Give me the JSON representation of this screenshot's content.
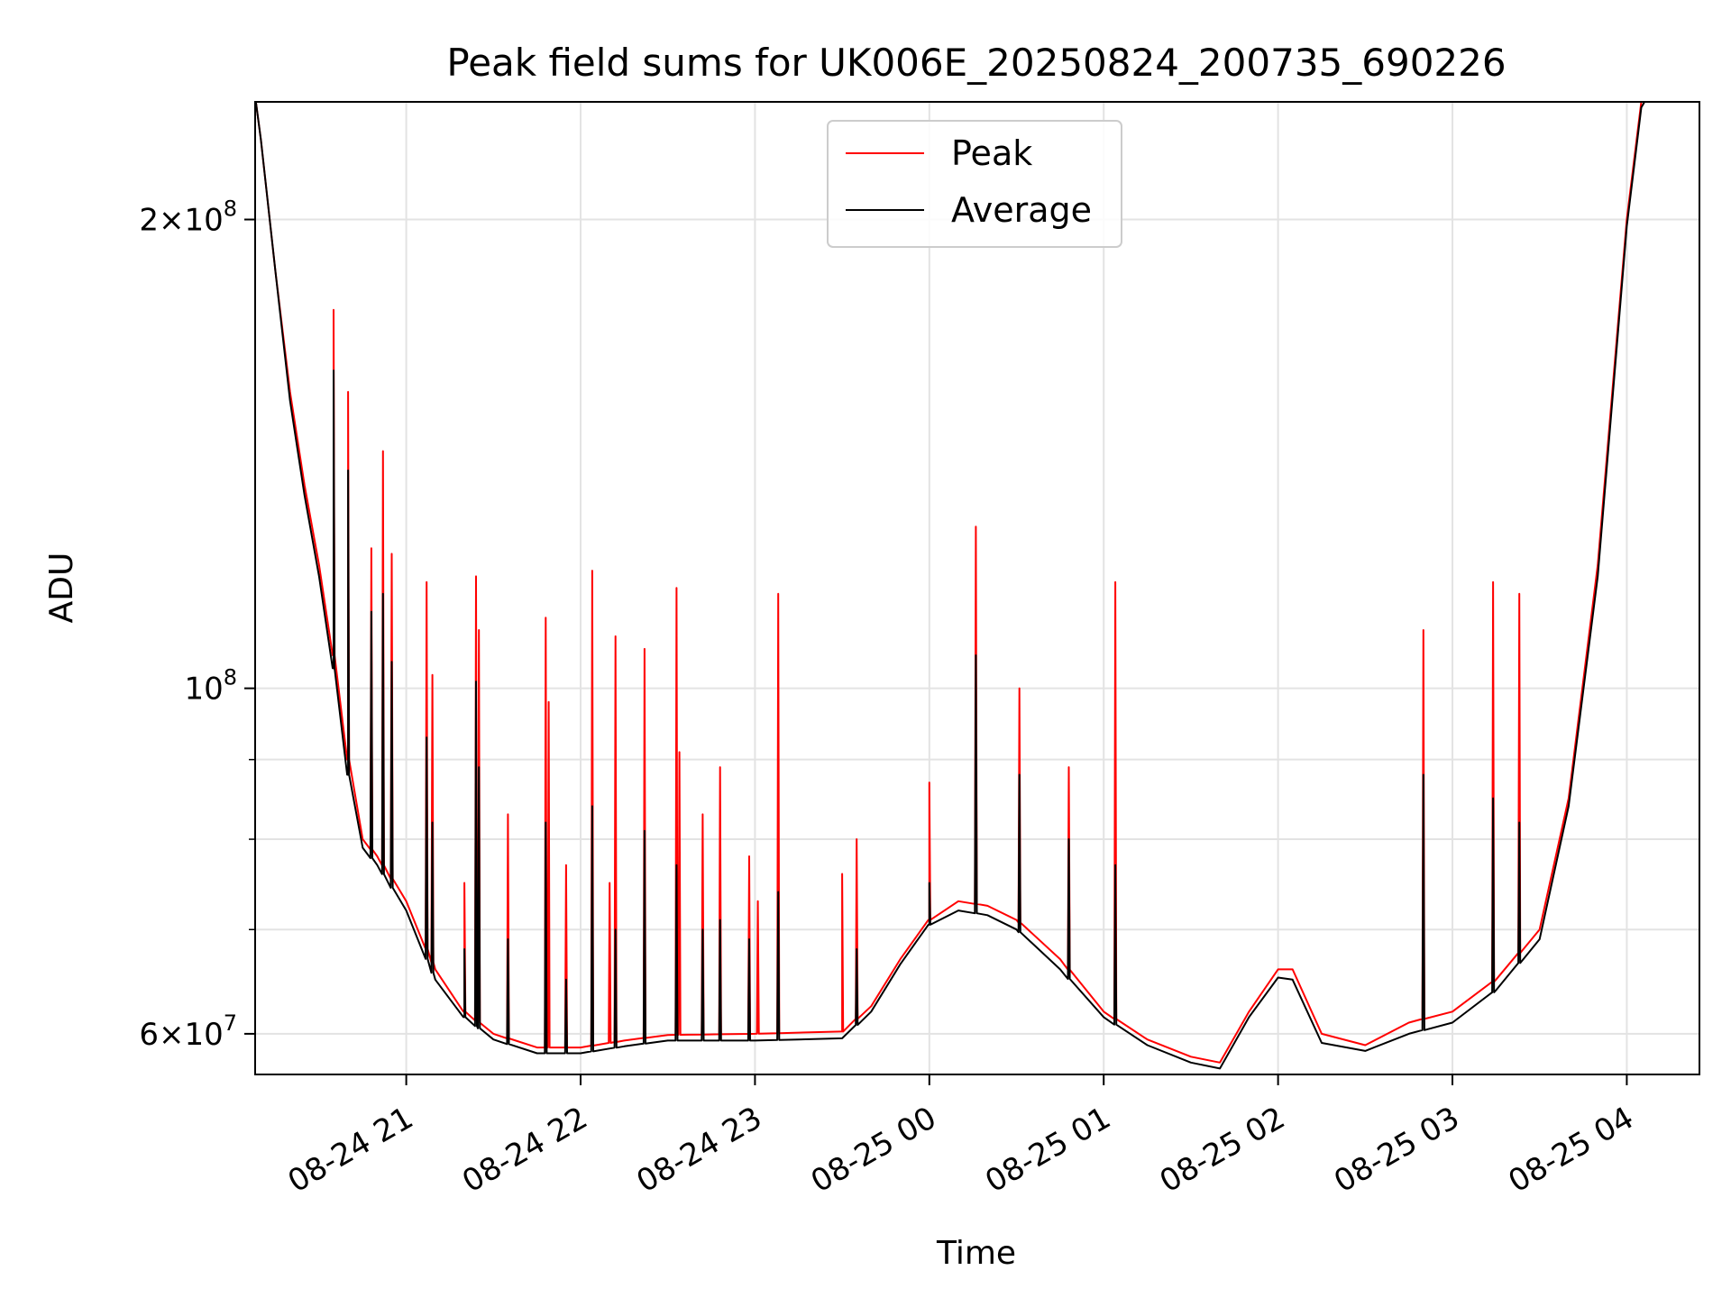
{
  "chart_data": {
    "type": "line",
    "title": "Peak field sums for UK006E_20250824_200735_690226",
    "xlabel": "Time",
    "ylabel": "ADU",
    "yscale": "log",
    "ylim": [
      56500000,
      238000000
    ],
    "xlim": [
      "2025-08-24 20:08",
      "2025-08-25 04:25"
    ],
    "grid": true,
    "legend_position": "top-center",
    "x_ticks": [
      {
        "value": "2025-08-24 21:00",
        "label": "08-24 21"
      },
      {
        "value": "2025-08-24 22:00",
        "label": "08-24 22"
      },
      {
        "value": "2025-08-24 23:00",
        "label": "08-24 23"
      },
      {
        "value": "2025-08-25 00:00",
        "label": "08-25 00"
      },
      {
        "value": "2025-08-25 01:00",
        "label": "08-25 01"
      },
      {
        "value": "2025-08-25 02:00",
        "label": "08-25 02"
      },
      {
        "value": "2025-08-25 03:00",
        "label": "08-25 03"
      },
      {
        "value": "2025-08-25 04:00",
        "label": "08-25 04"
      }
    ],
    "y_ticks": [
      {
        "value": 200000000,
        "mantissa": "2",
        "exponent": "8",
        "times": "×",
        "base": "10"
      },
      {
        "value": 100000000,
        "mantissa": "",
        "exponent": "8",
        "times": "",
        "base": "10"
      },
      {
        "value": 60000000,
        "mantissa": "6",
        "exponent": "7",
        "times": "×",
        "base": "10"
      }
    ],
    "y_minor_ticks": [
      70000000,
      80000000,
      90000000
    ],
    "series": [
      {
        "name": "Peak",
        "color": "#ff0000",
        "baseline": [
          [
            "2025-08-24 20:08",
            240000000
          ],
          [
            "2025-08-24 20:10",
            225000000
          ],
          [
            "2025-08-24 20:15",
            185000000
          ],
          [
            "2025-08-24 20:20",
            155000000
          ],
          [
            "2025-08-24 20:25",
            135000000
          ],
          [
            "2025-08-24 20:30",
            120000000
          ],
          [
            "2025-08-24 20:35",
            105000000
          ],
          [
            "2025-08-24 20:40",
            90000000
          ],
          [
            "2025-08-24 20:45",
            80000000
          ],
          [
            "2025-08-24 20:50",
            78000000
          ],
          [
            "2025-08-24 21:00",
            73000000
          ],
          [
            "2025-08-24 21:10",
            66000000
          ],
          [
            "2025-08-24 21:20",
            62000000
          ],
          [
            "2025-08-24 21:30",
            60000000
          ],
          [
            "2025-08-24 21:45",
            58800000
          ],
          [
            "2025-08-24 22:00",
            58800000
          ],
          [
            "2025-08-24 22:15",
            59400000
          ],
          [
            "2025-08-24 22:30",
            59900000
          ],
          [
            "2025-08-24 23:00",
            60000000
          ],
          [
            "2025-08-24 23:30",
            60200000
          ],
          [
            "2025-08-24 23:40",
            62500000
          ],
          [
            "2025-08-24 23:50",
            67000000
          ],
          [
            "2025-08-25 00:00",
            71000000
          ],
          [
            "2025-08-25 00:10",
            73000000
          ],
          [
            "2025-08-25 00:20",
            72500000
          ],
          [
            "2025-08-25 00:30",
            71000000
          ],
          [
            "2025-08-25 00:45",
            67000000
          ],
          [
            "2025-08-25 01:00",
            62000000
          ],
          [
            "2025-08-25 01:15",
            59500000
          ],
          [
            "2025-08-25 01:30",
            58000000
          ],
          [
            "2025-08-25 01:40",
            57500000
          ],
          [
            "2025-08-25 01:50",
            62000000
          ],
          [
            "2025-08-25 02:00",
            66000000
          ],
          [
            "2025-08-25 02:05",
            66000000
          ],
          [
            "2025-08-25 02:15",
            60000000
          ],
          [
            "2025-08-25 02:30",
            59000000
          ],
          [
            "2025-08-25 02:45",
            61000000
          ],
          [
            "2025-08-25 03:00",
            62000000
          ],
          [
            "2025-08-25 03:15",
            65000000
          ],
          [
            "2025-08-25 03:30",
            70000000
          ],
          [
            "2025-08-25 03:40",
            85000000
          ],
          [
            "2025-08-25 03:50",
            120000000
          ],
          [
            "2025-08-25 04:00",
            200000000
          ],
          [
            "2025-08-25 04:05",
            238000000
          ],
          [
            "2025-08-25 04:10",
            245000000
          ]
        ],
        "spikes": [
          [
            "2025-08-24 20:35",
            175000000
          ],
          [
            "2025-08-24 20:40",
            155000000
          ],
          [
            "2025-08-24 20:48",
            123000000
          ],
          [
            "2025-08-24 20:52",
            142000000
          ],
          [
            "2025-08-24 20:55",
            122000000
          ],
          [
            "2025-08-24 21:07",
            117000000
          ],
          [
            "2025-08-24 21:09",
            102000000
          ],
          [
            "2025-08-24 21:20",
            75000000
          ],
          [
            "2025-08-24 21:24",
            118000000
          ],
          [
            "2025-08-24 21:25",
            109000000
          ],
          [
            "2025-08-24 21:35",
            83000000
          ],
          [
            "2025-08-24 21:48",
            111000000
          ],
          [
            "2025-08-24 21:49",
            98000000
          ],
          [
            "2025-08-24 21:55",
            77000000
          ],
          [
            "2025-08-24 22:04",
            119000000
          ],
          [
            "2025-08-24 22:10",
            75000000
          ],
          [
            "2025-08-24 22:12",
            108000000
          ],
          [
            "2025-08-24 22:22",
            106000000
          ],
          [
            "2025-08-24 22:33",
            116000000
          ],
          [
            "2025-08-24 22:34",
            91000000
          ],
          [
            "2025-08-24 22:42",
            83000000
          ],
          [
            "2025-08-24 22:48",
            89000000
          ],
          [
            "2025-08-24 22:58",
            78000000
          ],
          [
            "2025-08-24 23:01",
            73000000
          ],
          [
            "2025-08-24 23:08",
            115000000
          ],
          [
            "2025-08-24 23:30",
            76000000
          ],
          [
            "2025-08-24 23:35",
            80000000
          ],
          [
            "2025-08-25 00:00",
            87000000
          ],
          [
            "2025-08-25 00:16",
            127000000
          ],
          [
            "2025-08-25 00:31",
            100000000
          ],
          [
            "2025-08-25 00:48",
            89000000
          ],
          [
            "2025-08-25 01:04",
            117000000
          ],
          [
            "2025-08-25 02:50",
            109000000
          ],
          [
            "2025-08-25 03:14",
            117000000
          ],
          [
            "2025-08-25 03:23",
            115000000
          ]
        ]
      },
      {
        "name": "Average",
        "color": "#000000",
        "baseline": [
          [
            "2025-08-24 20:08",
            240000000
          ],
          [
            "2025-08-24 20:10",
            225000000
          ],
          [
            "2025-08-24 20:15",
            185000000
          ],
          [
            "2025-08-24 20:20",
            153000000
          ],
          [
            "2025-08-24 20:25",
            133000000
          ],
          [
            "2025-08-24 20:30",
            118000000
          ],
          [
            "2025-08-24 20:35",
            103000000
          ],
          [
            "2025-08-24 20:40",
            88000000
          ],
          [
            "2025-08-24 20:45",
            79000000
          ],
          [
            "2025-08-24 20:50",
            77000000
          ],
          [
            "2025-08-24 21:00",
            72000000
          ],
          [
            "2025-08-24 21:10",
            65000000
          ],
          [
            "2025-08-24 21:20",
            61500000
          ],
          [
            "2025-08-24 21:30",
            59500000
          ],
          [
            "2025-08-24 21:45",
            58300000
          ],
          [
            "2025-08-24 22:00",
            58300000
          ],
          [
            "2025-08-24 22:15",
            58900000
          ],
          [
            "2025-08-24 22:30",
            59400000
          ],
          [
            "2025-08-24 23:00",
            59400000
          ],
          [
            "2025-08-24 23:30",
            59600000
          ],
          [
            "2025-08-24 23:40",
            62000000
          ],
          [
            "2025-08-24 23:50",
            66500000
          ],
          [
            "2025-08-25 00:00",
            70500000
          ],
          [
            "2025-08-25 00:10",
            72000000
          ],
          [
            "2025-08-25 00:20",
            71500000
          ],
          [
            "2025-08-25 00:30",
            70000000
          ],
          [
            "2025-08-25 00:45",
            66000000
          ],
          [
            "2025-08-25 01:00",
            61500000
          ],
          [
            "2025-08-25 01:15",
            59000000
          ],
          [
            "2025-08-25 01:30",
            57500000
          ],
          [
            "2025-08-25 01:40",
            57000000
          ],
          [
            "2025-08-25 01:50",
            61500000
          ],
          [
            "2025-08-25 02:00",
            65200000
          ],
          [
            "2025-08-25 02:05",
            65000000
          ],
          [
            "2025-08-25 02:15",
            59200000
          ],
          [
            "2025-08-25 02:30",
            58500000
          ],
          [
            "2025-08-25 02:45",
            60000000
          ],
          [
            "2025-08-25 03:00",
            61000000
          ],
          [
            "2025-08-25 03:15",
            64000000
          ],
          [
            "2025-08-25 03:30",
            69000000
          ],
          [
            "2025-08-25 03:40",
            84000000
          ],
          [
            "2025-08-25 03:50",
            118000000
          ],
          [
            "2025-08-25 04:00",
            198000000
          ],
          [
            "2025-08-25 04:05",
            236000000
          ],
          [
            "2025-08-25 04:10",
            245000000
          ]
        ],
        "spikes": [
          [
            "2025-08-24 20:35",
            160000000
          ],
          [
            "2025-08-24 20:40",
            138000000
          ],
          [
            "2025-08-24 20:48",
            112000000
          ],
          [
            "2025-08-24 20:52",
            115000000
          ],
          [
            "2025-08-24 20:55",
            104000000
          ],
          [
            "2025-08-24 21:07",
            93000000
          ],
          [
            "2025-08-24 21:09",
            82000000
          ],
          [
            "2025-08-24 21:20",
            68000000
          ],
          [
            "2025-08-24 21:24",
            101000000
          ],
          [
            "2025-08-24 21:25",
            89000000
          ],
          [
            "2025-08-24 21:35",
            69000000
          ],
          [
            "2025-08-24 21:48",
            82000000
          ],
          [
            "2025-08-24 21:55",
            65000000
          ],
          [
            "2025-08-24 22:04",
            84000000
          ],
          [
            "2025-08-24 22:12",
            70000000
          ],
          [
            "2025-08-24 22:22",
            81000000
          ],
          [
            "2025-08-24 22:33",
            77000000
          ],
          [
            "2025-08-24 22:42",
            70000000
          ],
          [
            "2025-08-24 22:48",
            71000000
          ],
          [
            "2025-08-24 22:58",
            69000000
          ],
          [
            "2025-08-24 23:08",
            74000000
          ],
          [
            "2025-08-24 23:35",
            68000000
          ],
          [
            "2025-08-25 00:00",
            75000000
          ],
          [
            "2025-08-25 00:16",
            105000000
          ],
          [
            "2025-08-25 00:31",
            88000000
          ],
          [
            "2025-08-25 00:48",
            80000000
          ],
          [
            "2025-08-25 01:04",
            77000000
          ],
          [
            "2025-08-25 02:50",
            88000000
          ],
          [
            "2025-08-25 03:14",
            85000000
          ],
          [
            "2025-08-25 03:23",
            82000000
          ]
        ]
      }
    ]
  }
}
